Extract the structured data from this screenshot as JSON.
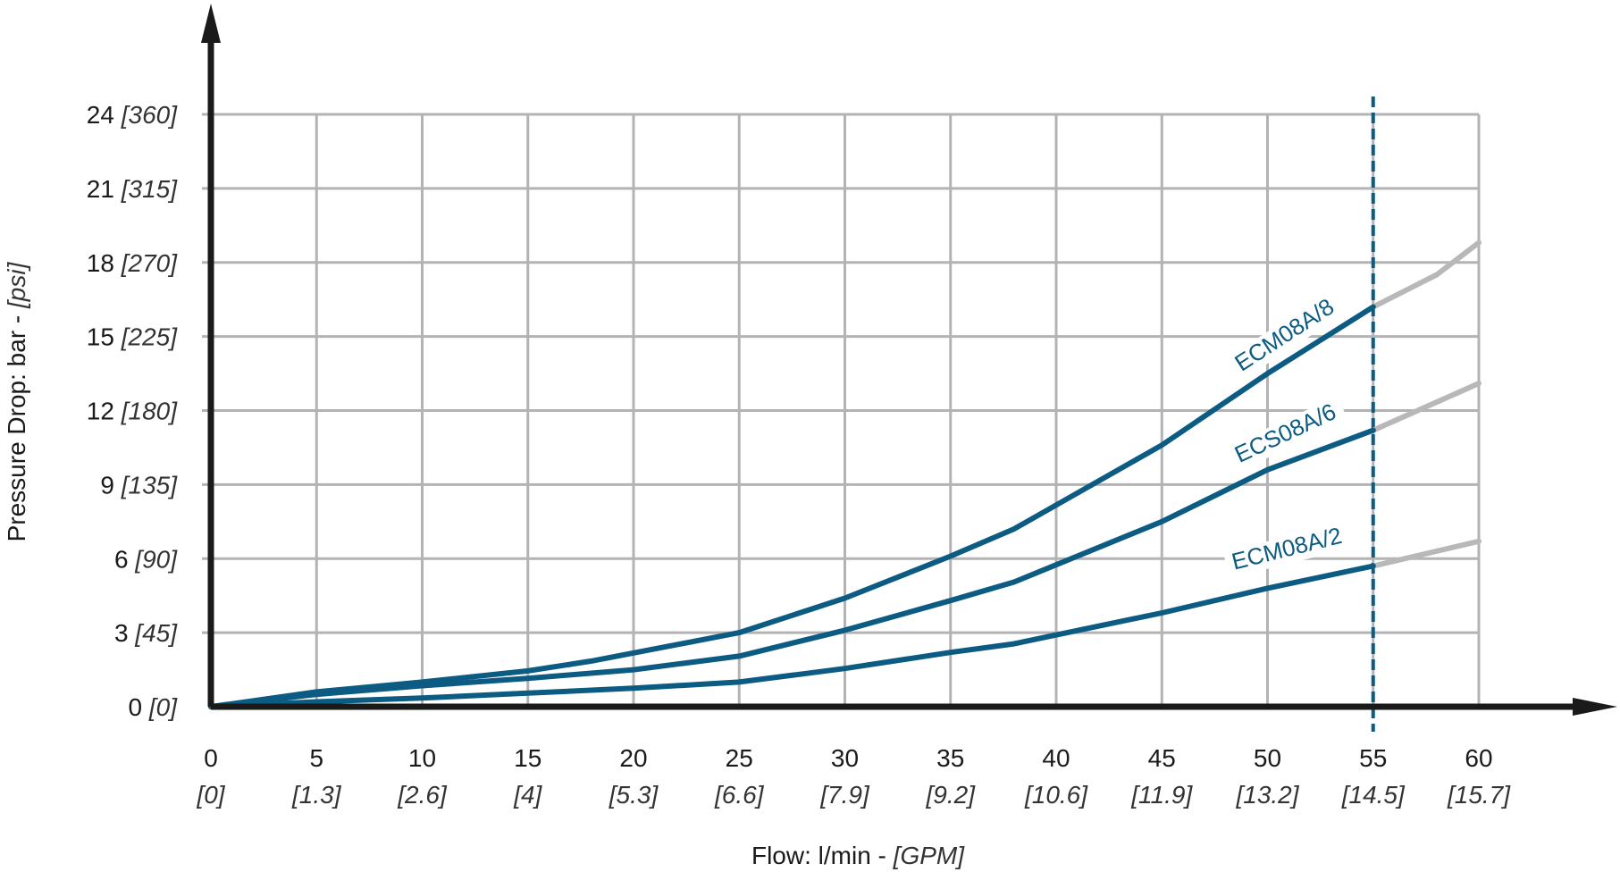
{
  "chart_data": {
    "type": "line",
    "xlabel": "Flow: l/min - ",
    "xlabel_unit": "[GPM]",
    "ylabel": "Pressure Drop: bar - ",
    "ylabel_unit": "[psi]",
    "xlim": [
      0,
      60
    ],
    "ylim": [
      0,
      24
    ],
    "grid": true,
    "x_ticks": [
      {
        "value": 0,
        "label": "0",
        "alt": "[0]"
      },
      {
        "value": 5,
        "label": "5",
        "alt": "[1.3]"
      },
      {
        "value": 10,
        "label": "10",
        "alt": "[2.6]"
      },
      {
        "value": 15,
        "label": "15",
        "alt": "[4]"
      },
      {
        "value": 20,
        "label": "20",
        "alt": "[5.3]"
      },
      {
        "value": 25,
        "label": "25",
        "alt": "[6.6]"
      },
      {
        "value": 30,
        "label": "30",
        "alt": "[7.9]"
      },
      {
        "value": 35,
        "label": "35",
        "alt": "[9.2]"
      },
      {
        "value": 40,
        "label": "40",
        "alt": "[10.6]"
      },
      {
        "value": 45,
        "label": "45",
        "alt": "[11.9]"
      },
      {
        "value": 50,
        "label": "50",
        "alt": "[13.2]"
      },
      {
        "value": 55,
        "label": "55",
        "alt": "[14.5]"
      },
      {
        "value": 60,
        "label": "60",
        "alt": "[15.7]"
      }
    ],
    "y_ticks": [
      {
        "value": 0,
        "label": "0",
        "alt": "[0]"
      },
      {
        "value": 3,
        "label": "3",
        "alt": "[45]"
      },
      {
        "value": 6,
        "label": "6",
        "alt": "[90]"
      },
      {
        "value": 9,
        "label": "9",
        "alt": "[135]"
      },
      {
        "value": 12,
        "label": "12",
        "alt": "[180]"
      },
      {
        "value": 15,
        "label": "15",
        "alt": "[225]"
      },
      {
        "value": 18,
        "label": "18",
        "alt": "[270]"
      },
      {
        "value": 21,
        "label": "21",
        "alt": "[315]"
      },
      {
        "value": 24,
        "label": "24",
        "alt": "[360]"
      }
    ],
    "limit_line": {
      "x": 55,
      "style": "dashed",
      "color": "#0c5b82"
    },
    "series": [
      {
        "name": "ECM08A/8",
        "color": "#0c5b82",
        "extension_color": "#b8b8b8",
        "points": [
          [
            0,
            0
          ],
          [
            5,
            0.6
          ],
          [
            10,
            1.0
          ],
          [
            15,
            1.45
          ],
          [
            18,
            1.85
          ],
          [
            25,
            3.0
          ],
          [
            30,
            4.4
          ],
          [
            35,
            6.1
          ],
          [
            38,
            7.2
          ],
          [
            45,
            10.6
          ],
          [
            50,
            13.5
          ],
          [
            55,
            16.2
          ],
          [
            58,
            17.5
          ],
          [
            60,
            18.8
          ]
        ],
        "label_at": {
          "x": 51,
          "y": 14.8
        }
      },
      {
        "name": "ECS08A/6",
        "color": "#0c5b82",
        "extension_color": "#b8b8b8",
        "points": [
          [
            0,
            0
          ],
          [
            5,
            0.5
          ],
          [
            10,
            0.85
          ],
          [
            15,
            1.15
          ],
          [
            20,
            1.5
          ],
          [
            25,
            2.05
          ],
          [
            30,
            3.1
          ],
          [
            35,
            4.3
          ],
          [
            38,
            5.05
          ],
          [
            45,
            7.5
          ],
          [
            50,
            9.6
          ],
          [
            55,
            11.2
          ],
          [
            60,
            13.1
          ]
        ],
        "label_at": {
          "x": 51,
          "y": 10.8
        }
      },
      {
        "name": "ECM08A/2",
        "color": "#0c5b82",
        "extension_color": "#b8b8b8",
        "points": [
          [
            0,
            0
          ],
          [
            5,
            0.2
          ],
          [
            10,
            0.35
          ],
          [
            15,
            0.55
          ],
          [
            20,
            0.75
          ],
          [
            25,
            1.0
          ],
          [
            30,
            1.55
          ],
          [
            35,
            2.2
          ],
          [
            38,
            2.55
          ],
          [
            45,
            3.8
          ],
          [
            50,
            4.8
          ],
          [
            55,
            5.7
          ],
          [
            60,
            6.7
          ]
        ],
        "label_at": {
          "x": 51,
          "y": 6.1
        }
      }
    ]
  }
}
